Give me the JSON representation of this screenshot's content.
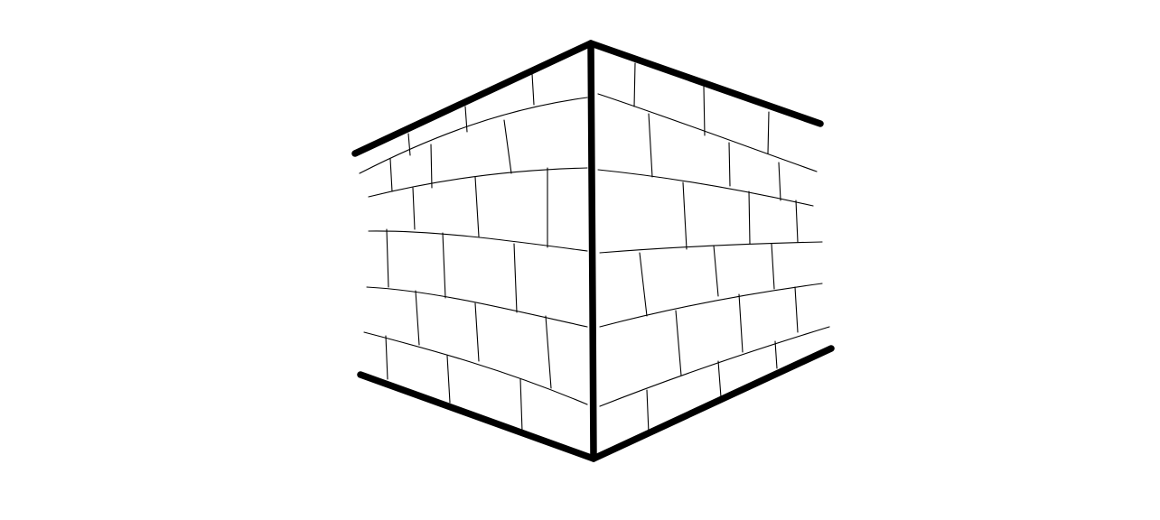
{
  "drawing": {
    "subject": "brick-wall-corner",
    "colors": {
      "background": "#ffffff",
      "ink": "#000000"
    }
  }
}
